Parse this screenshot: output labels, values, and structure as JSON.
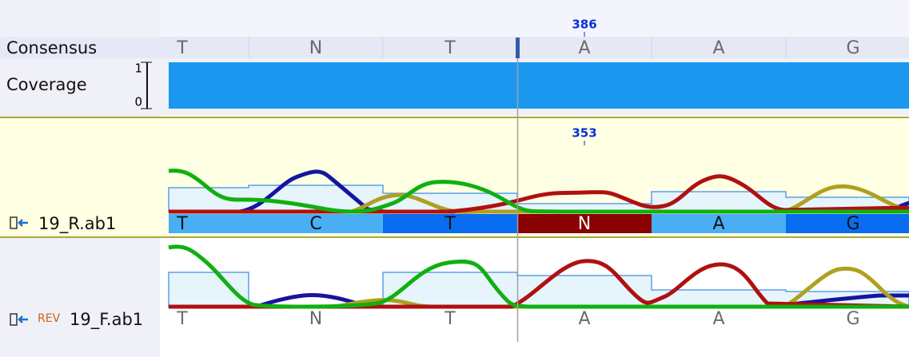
{
  "ruler": {
    "position": 386
  },
  "consensus": {
    "label": "Consensus",
    "bases": [
      "T",
      "N",
      "T",
      "A",
      "A",
      "G"
    ]
  },
  "coverage": {
    "label": "Coverage",
    "max": 1,
    "min": 0
  },
  "reads": [
    {
      "name": "19_R.ab1",
      "position": 353,
      "bases": [
        "T",
        "C",
        "T",
        "N",
        "A",
        "G"
      ]
    },
    {
      "tag": "REV",
      "name": "19_F.ab1",
      "bases": [
        "T",
        "N",
        "T",
        "A",
        "A",
        "G"
      ]
    }
  ]
}
